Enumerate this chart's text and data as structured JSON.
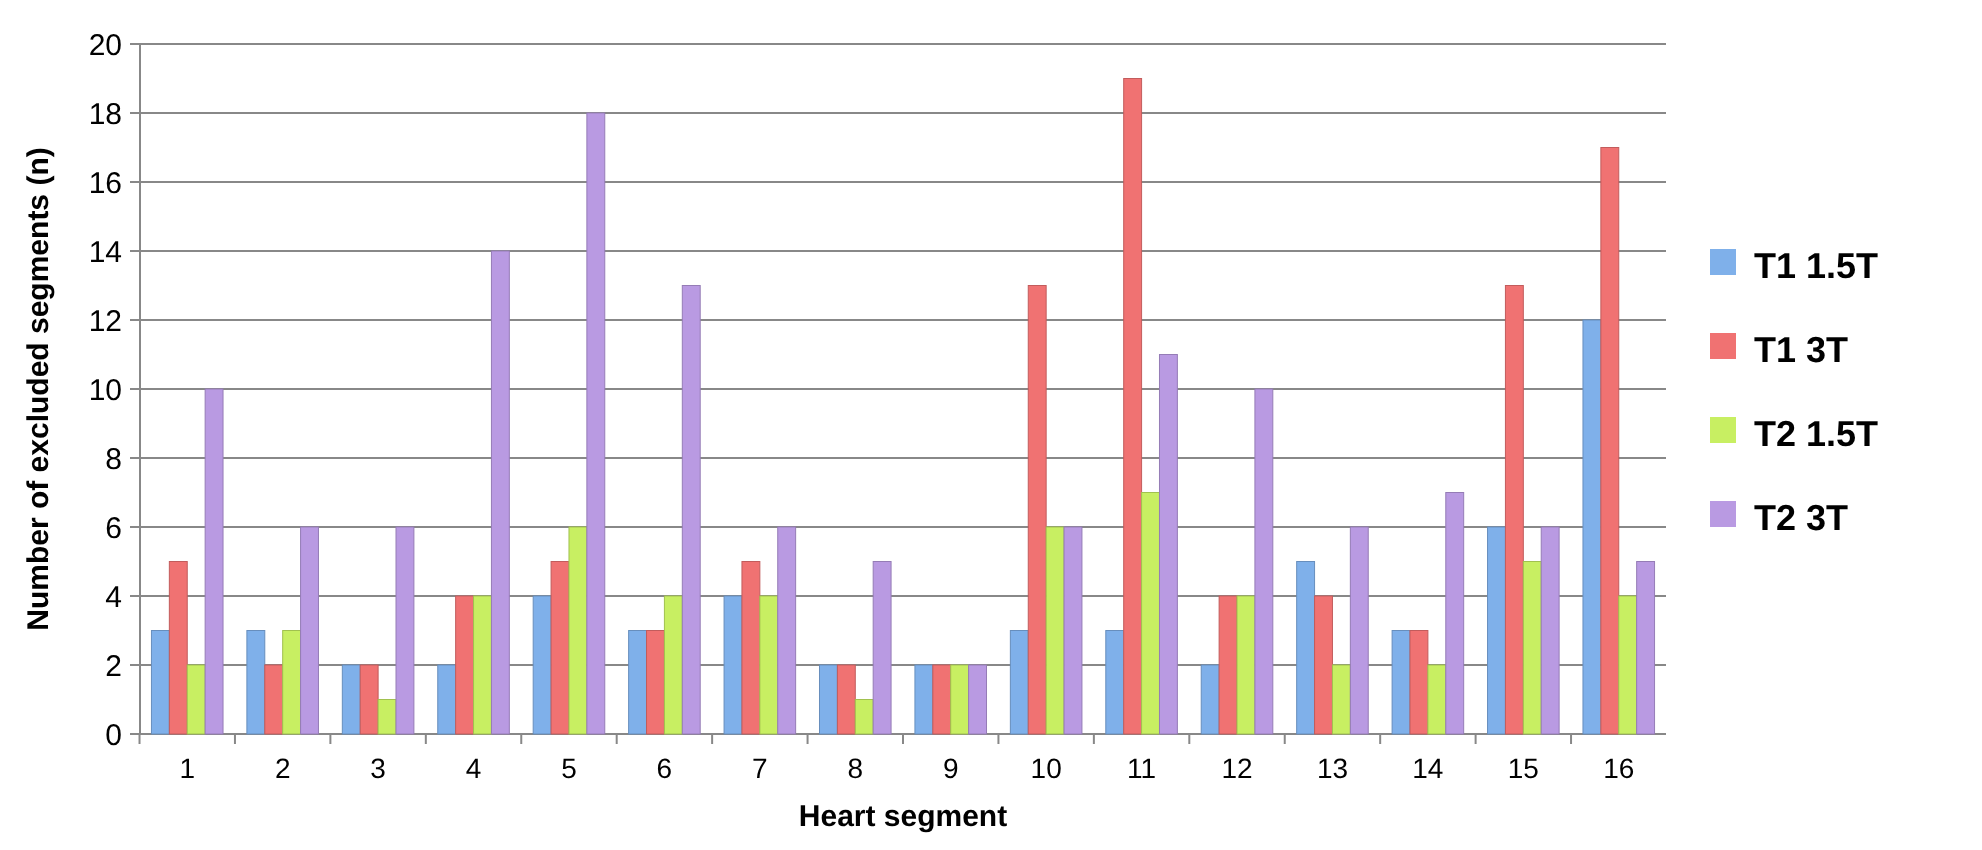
{
  "chart_data": {
    "type": "bar",
    "xlabel": "Heart segment",
    "ylabel": "Number of excluded segments (n)",
    "categories": [
      "1",
      "2",
      "3",
      "4",
      "5",
      "6",
      "7",
      "8",
      "9",
      "10",
      "11",
      "12",
      "13",
      "14",
      "15",
      "16"
    ],
    "series": [
      {
        "name": "T1 1.5T",
        "color": "#7fb0ea",
        "values": [
          3,
          3,
          2,
          2,
          4,
          3,
          4,
          2,
          2,
          3,
          3,
          2,
          5,
          3,
          6,
          12
        ]
      },
      {
        "name": "T1 3T",
        "color": "#f07272",
        "values": [
          5,
          2,
          2,
          4,
          5,
          3,
          5,
          2,
          2,
          13,
          19,
          4,
          4,
          3,
          13,
          17
        ]
      },
      {
        "name": "T2 1.5T",
        "color": "#c8ef62",
        "values": [
          2,
          3,
          1,
          4,
          6,
          4,
          4,
          1,
          2,
          6,
          7,
          4,
          2,
          2,
          5,
          4
        ]
      },
      {
        "name": "T2 3T",
        "color": "#b99ae2",
        "values": [
          10,
          6,
          6,
          14,
          18,
          13,
          6,
          5,
          2,
          6,
          11,
          10,
          6,
          7,
          6,
          5
        ]
      }
    ],
    "ylim": [
      0,
      20
    ],
    "yticks": [
      0,
      2,
      4,
      6,
      8,
      10,
      12,
      14,
      16,
      18,
      20
    ],
    "grid": "y",
    "legend": "right"
  }
}
